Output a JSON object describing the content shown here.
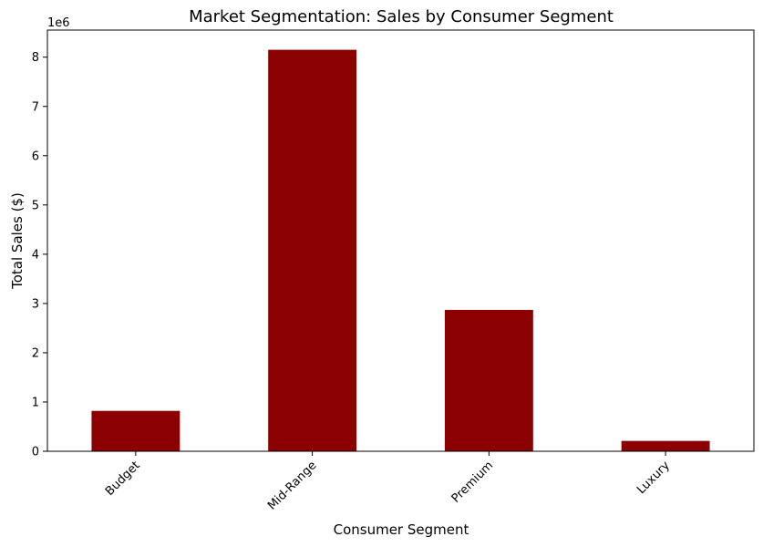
{
  "chart_data": {
    "type": "bar",
    "title": "Market Segmentation: Sales by Consumer Segment",
    "xlabel": "Consumer Segment",
    "ylabel": "Total Sales ($)",
    "y_offset_label": "1e6",
    "y_scale_factor": 1000000,
    "categories": [
      "Budget",
      "Mid-Range",
      "Premium",
      "Luxury"
    ],
    "values": [
      820000,
      8150000,
      2870000,
      210000
    ],
    "ylim": [
      0,
      8550000
    ],
    "yticks": [
      0,
      1,
      2,
      3,
      4,
      5,
      6,
      7,
      8
    ],
    "bar_color": "#8b0000",
    "grid": false,
    "legend": "none",
    "x_tick_rotation": 45
  }
}
